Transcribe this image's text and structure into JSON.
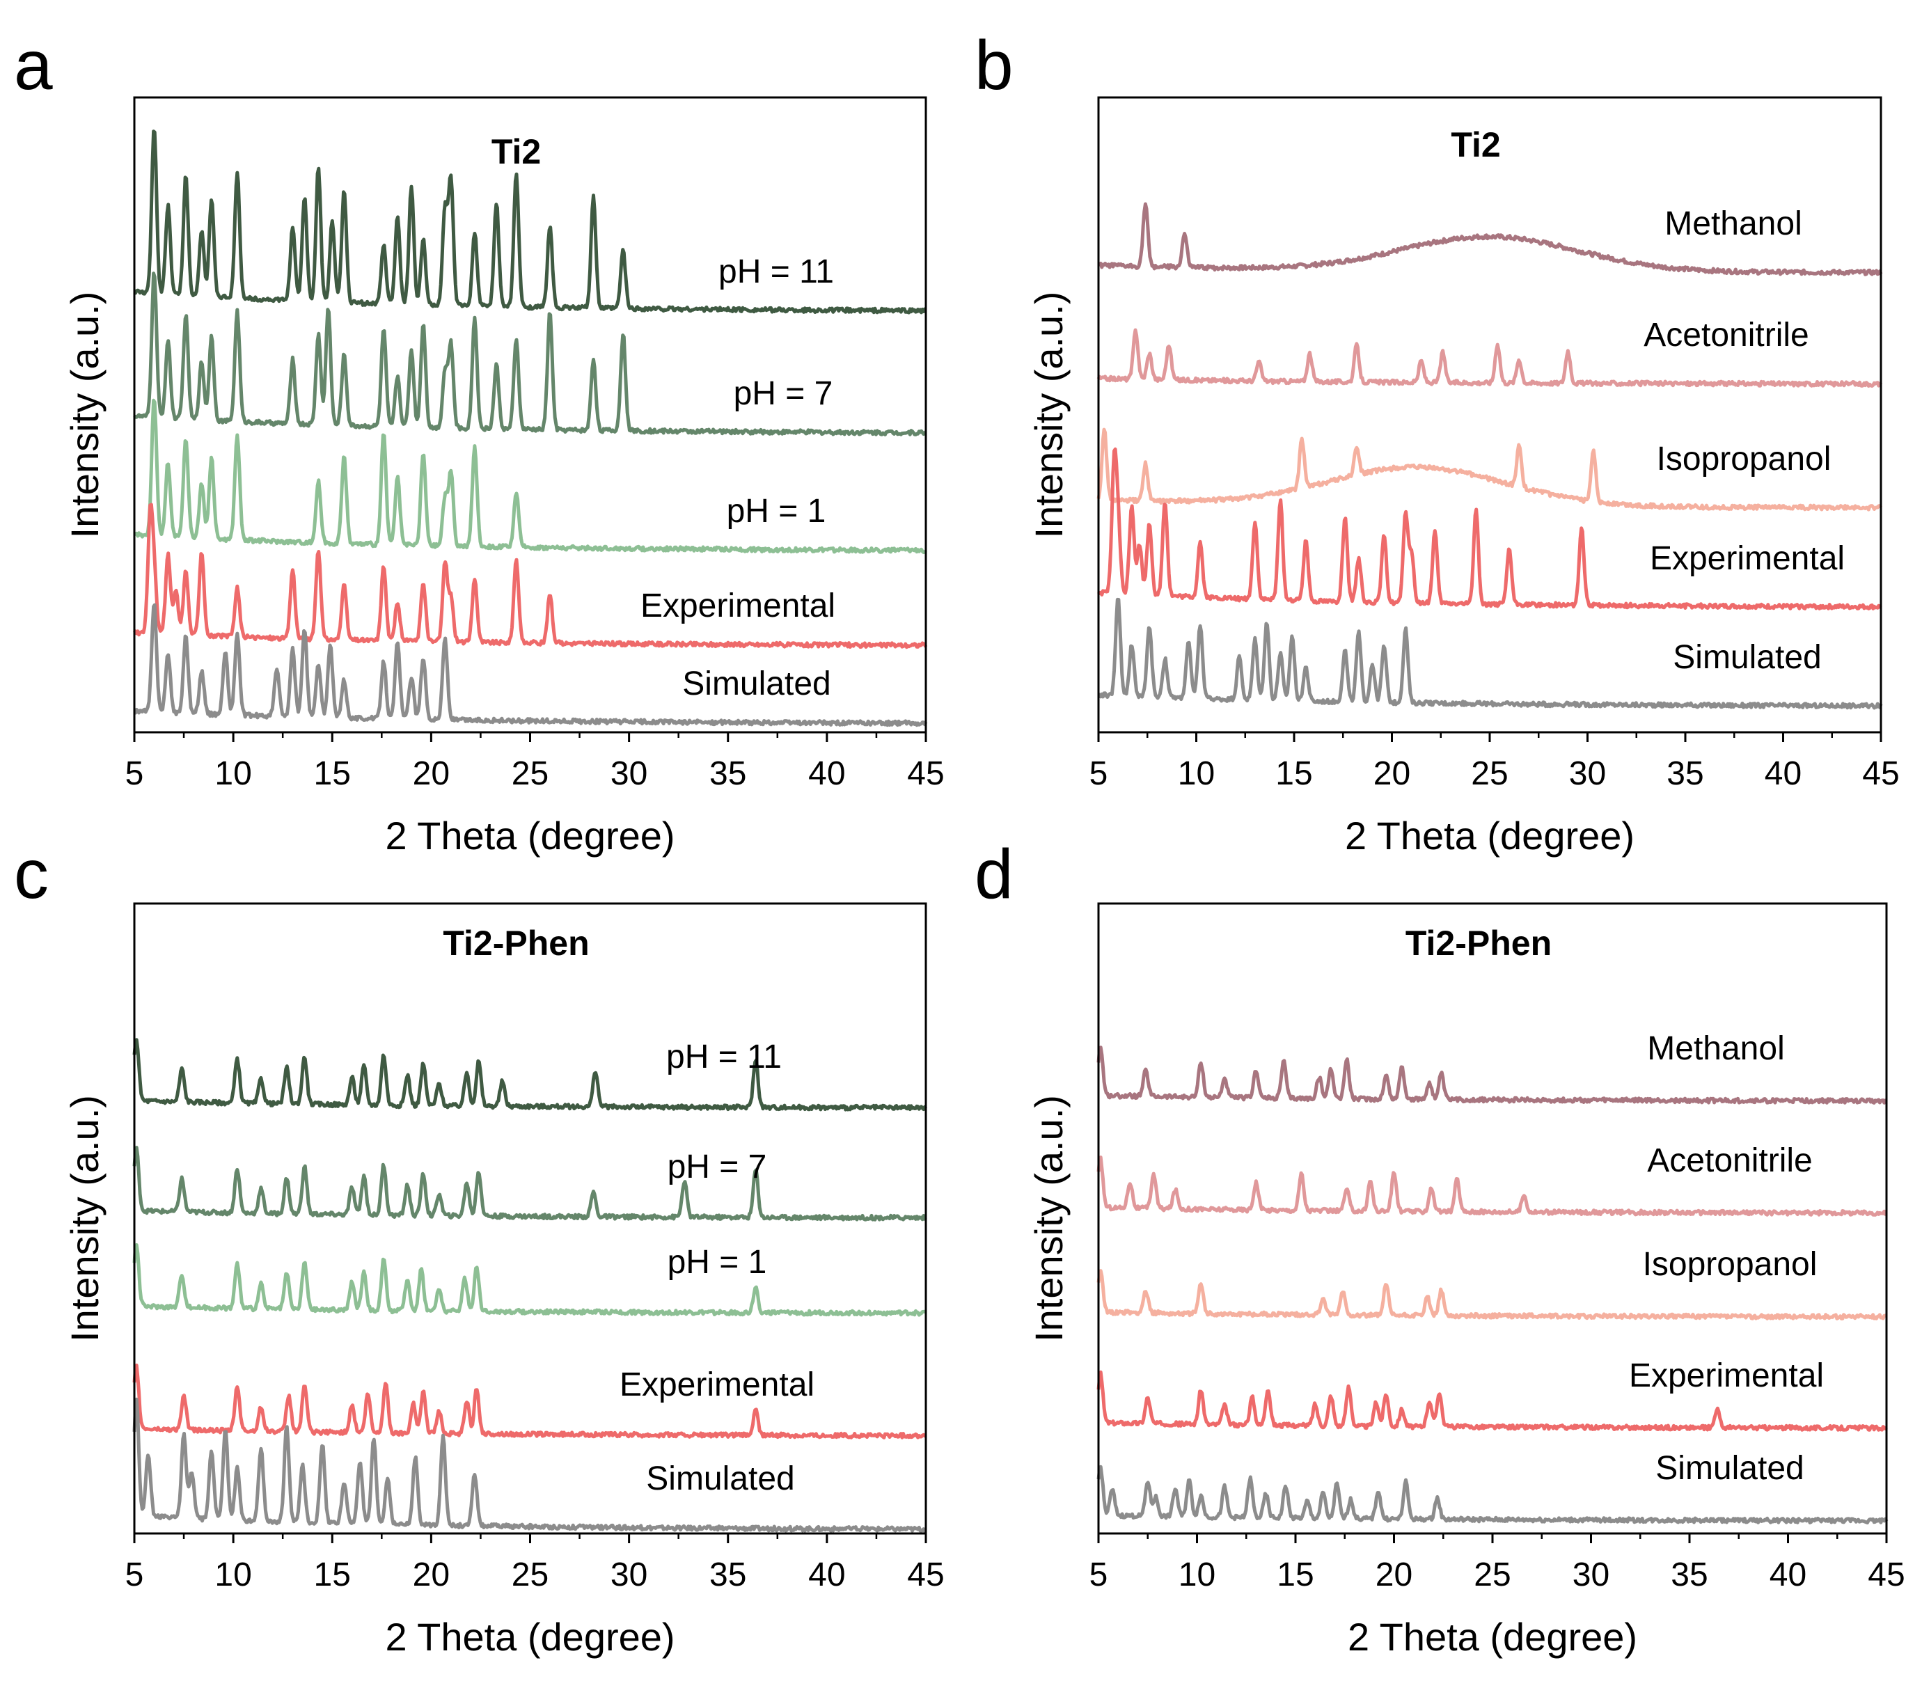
{
  "chart_data": [
    {
      "panel": "a",
      "type": "line",
      "title": "Ti2",
      "xlabel": "2 Theta (degree)",
      "ylabel": "Intensity (a.u.)",
      "xlim": [
        5,
        45
      ],
      "xticks": [
        "5",
        "10",
        "15",
        "20",
        "25",
        "30",
        "35",
        "40",
        "45"
      ],
      "ytick_labels": "none",
      "series": [
        {
          "name": "pH = 11",
          "color": "#3f5a42",
          "peaks": [
            6.0,
            6.7,
            7.6,
            8.4,
            8.9,
            10.2,
            13.0,
            13.6,
            14.3,
            15.0,
            15.6,
            17.6,
            18.3,
            19.0,
            19.6,
            20.7,
            21.0,
            22.2,
            23.3,
            24.3,
            26.0,
            28.2,
            29.7
          ]
        },
        {
          "name": "pH = 7",
          "color": "#64866a",
          "peaks": [
            6.0,
            6.7,
            7.6,
            8.4,
            8.9,
            10.2,
            13.0,
            14.3,
            14.8,
            15.6,
            17.6,
            18.3,
            19.0,
            19.6,
            20.7,
            21.0,
            22.2,
            23.3,
            24.3,
            26.0,
            28.2,
            29.7
          ]
        },
        {
          "name": "pH = 1",
          "color": "#8dbf94",
          "peaks": [
            6.0,
            6.7,
            7.6,
            8.4,
            8.9,
            10.2,
            14.3,
            15.6,
            17.6,
            18.3,
            19.6,
            20.7,
            21.0,
            22.2,
            24.3
          ]
        },
        {
          "name": "Experimental",
          "color": "#ee6a6a",
          "peaks": [
            5.8,
            6.0,
            6.7,
            7.1,
            7.6,
            8.4,
            10.2,
            13.0,
            14.3,
            15.6,
            17.6,
            18.3,
            19.6,
            20.7,
            21.0,
            22.2,
            24.3,
            26.0
          ]
        },
        {
          "name": "Simulated",
          "color": "#8c8c8c",
          "peaks": [
            6.0,
            6.7,
            7.6,
            8.4,
            9.6,
            10.2,
            12.2,
            13.0,
            13.6,
            14.3,
            14.9,
            15.6,
            17.6,
            18.3,
            19.0,
            19.6,
            20.7
          ]
        }
      ]
    },
    {
      "panel": "b",
      "type": "line",
      "title": "Ti2",
      "xlabel": "2 Theta (degree)",
      "ylabel": "Intensity (a.u.)",
      "xlim": [
        5,
        45
      ],
      "xticks": [
        "5",
        "10",
        "15",
        "20",
        "25",
        "30",
        "35",
        "40",
        "45"
      ],
      "ytick_labels": "none",
      "series": [
        {
          "name": "Methanol",
          "color": "#a8757f",
          "peaks": [
            7.4,
            9.4
          ],
          "hump_center": 25
        },
        {
          "name": "Acetonitrile",
          "color": "#e0989a",
          "peaks": [
            6.9,
            7.6,
            8.6,
            13.2,
            15.8,
            18.2,
            21.5,
            22.6,
            25.4,
            26.5,
            29.0
          ]
        },
        {
          "name": "Isopropanol",
          "color": "#f5b09f",
          "peaks": [
            5.3,
            7.4,
            15.4,
            18.2,
            26.5,
            30.3
          ],
          "hump_center": 21.3
        },
        {
          "name": "Experimental",
          "color": "#ee6a6a",
          "peaks": [
            5.8,
            6.0,
            6.7,
            7.1,
            7.6,
            8.4,
            10.2,
            13.0,
            14.3,
            15.6,
            17.6,
            18.3,
            19.6,
            20.7,
            21.0,
            22.2,
            24.3,
            26.0,
            29.7
          ]
        },
        {
          "name": "Simulated",
          "color": "#8c8c8c",
          "peaks": [
            6.0,
            6.7,
            7.6,
            8.4,
            9.6,
            10.2,
            12.2,
            13.0,
            13.6,
            14.3,
            14.9,
            15.6,
            17.6,
            18.3,
            19.0,
            19.6,
            20.7
          ]
        }
      ]
    },
    {
      "panel": "c",
      "type": "line",
      "title": "Ti2-Phen",
      "xlabel": "2 Theta (degree)",
      "ylabel": "Intensity (a.u.)",
      "xlim": [
        5,
        45
      ],
      "xticks": [
        "5",
        "10",
        "15",
        "20",
        "25",
        "30",
        "35",
        "40",
        "45"
      ],
      "ytick_labels": "none",
      "series": [
        {
          "name": "pH = 11",
          "color": "#3f5a42",
          "peaks": [
            5.1,
            7.4,
            10.2,
            11.4,
            12.7,
            13.6,
            16.0,
            16.6,
            17.6,
            18.8,
            19.6,
            20.4,
            21.8,
            22.4,
            23.6,
            28.3,
            36.4
          ]
        },
        {
          "name": "pH = 7",
          "color": "#64866a",
          "peaks": [
            5.1,
            7.4,
            10.2,
            11.4,
            12.7,
            13.6,
            16.0,
            16.6,
            17.6,
            18.8,
            19.6,
            20.4,
            21.8,
            22.4,
            28.2,
            32.8,
            36.4
          ]
        },
        {
          "name": "pH = 1",
          "color": "#8dbf94",
          "peaks": [
            5.1,
            7.4,
            10.2,
            11.4,
            12.7,
            13.6,
            16.0,
            16.6,
            17.6,
            18.8,
            19.5,
            20.4,
            21.7,
            22.3,
            36.4
          ]
        },
        {
          "name": "Experimental",
          "color": "#ee6a6a",
          "peaks": [
            5.1,
            7.5,
            10.2,
            11.4,
            12.8,
            13.6,
            16.0,
            16.8,
            17.7,
            19.1,
            19.6,
            20.4,
            21.8,
            22.3,
            36.4
          ]
        },
        {
          "name": "Simulated",
          "color": "#8c8c8c",
          "peaks": [
            5.1,
            5.7,
            7.5,
            7.9,
            8.9,
            9.6,
            10.2,
            11.4,
            12.7,
            13.5,
            14.5,
            15.6,
            16.4,
            17.1,
            17.8,
            19.2,
            20.6,
            22.2
          ]
        }
      ]
    },
    {
      "panel": "d",
      "type": "line",
      "title": "Ti2-Phen",
      "xlabel": "2 Theta (degree)",
      "ylabel": "Intensity (a.u.)",
      "xlim": [
        5,
        45
      ],
      "xticks": [
        "5",
        "10",
        "15",
        "20",
        "25",
        "30",
        "35",
        "40",
        "45"
      ],
      "ytick_labels": "none",
      "series": [
        {
          "name": "Methanol",
          "color": "#a8757f",
          "peaks": [
            5.1,
            7.4,
            10.2,
            11.4,
            13.0,
            14.4,
            16.2,
            16.8,
            17.6,
            19.6,
            20.4,
            21.8,
            22.4
          ]
        },
        {
          "name": "Acetonitrile",
          "color": "#e0989a",
          "peaks": [
            5.1,
            6.6,
            7.8,
            8.9,
            13.0,
            15.3,
            17.6,
            18.8,
            20.0,
            21.9,
            23.2,
            26.6
          ]
        },
        {
          "name": "Isopropanol",
          "color": "#f5b09f",
          "peaks": [
            5.1,
            7.4,
            10.2,
            16.4,
            17.4,
            19.6,
            21.7,
            22.4
          ]
        },
        {
          "name": "Experimental",
          "color": "#ee6a6a",
          "peaks": [
            5.1,
            7.5,
            10.2,
            11.4,
            12.8,
            13.6,
            16.0,
            16.8,
            17.7,
            19.1,
            19.6,
            20.4,
            21.8,
            22.3,
            36.4
          ]
        },
        {
          "name": "Simulated",
          "color": "#8c8c8c",
          "peaks": [
            5.1,
            5.7,
            7.5,
            7.9,
            8.9,
            9.6,
            10.2,
            11.4,
            12.7,
            13.5,
            14.5,
            15.6,
            16.4,
            17.1,
            17.8,
            19.2,
            20.6,
            22.2
          ]
        }
      ]
    }
  ]
}
